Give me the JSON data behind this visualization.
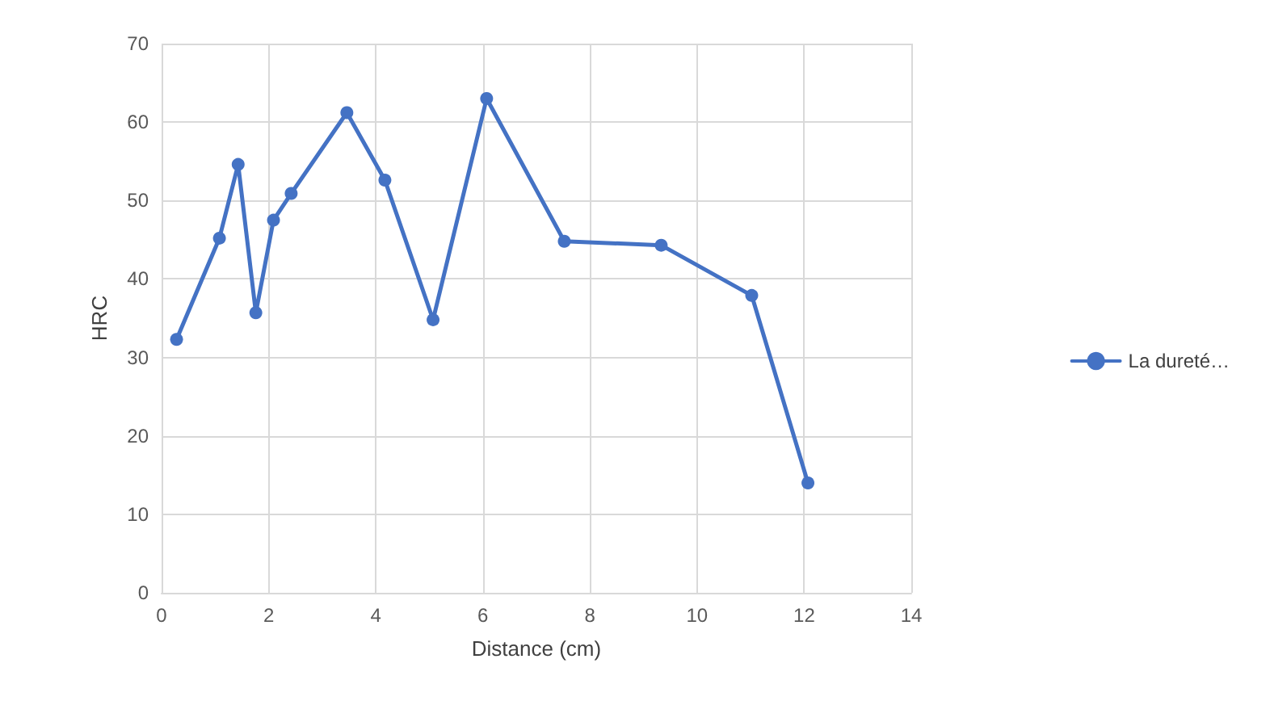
{
  "chart_data": {
    "type": "line",
    "xlabel": "Distance (cm)",
    "ylabel": "HRC",
    "x": [
      0.28,
      1.08,
      1.43,
      1.76,
      2.09,
      2.42,
      3.46,
      4.17,
      5.07,
      6.07,
      7.52,
      9.33,
      11.02,
      12.07
    ],
    "series": [
      {
        "name": "La dureté…",
        "color": "#4472c4",
        "values": [
          32.3,
          45.2,
          54.6,
          35.7,
          47.5,
          50.9,
          61.2,
          52.6,
          34.8,
          63.0,
          44.8,
          44.3,
          37.9,
          14.0
        ]
      }
    ],
    "xlim": [
      0,
      14
    ],
    "xticks": [
      0,
      2,
      4,
      6,
      8,
      10,
      12,
      14
    ],
    "ylim": [
      0,
      70
    ],
    "yticks": [
      0,
      10,
      20,
      30,
      40,
      50,
      60,
      70
    ],
    "grid": true,
    "legend": "right",
    "marker": "circle",
    "line_style": "solid"
  }
}
